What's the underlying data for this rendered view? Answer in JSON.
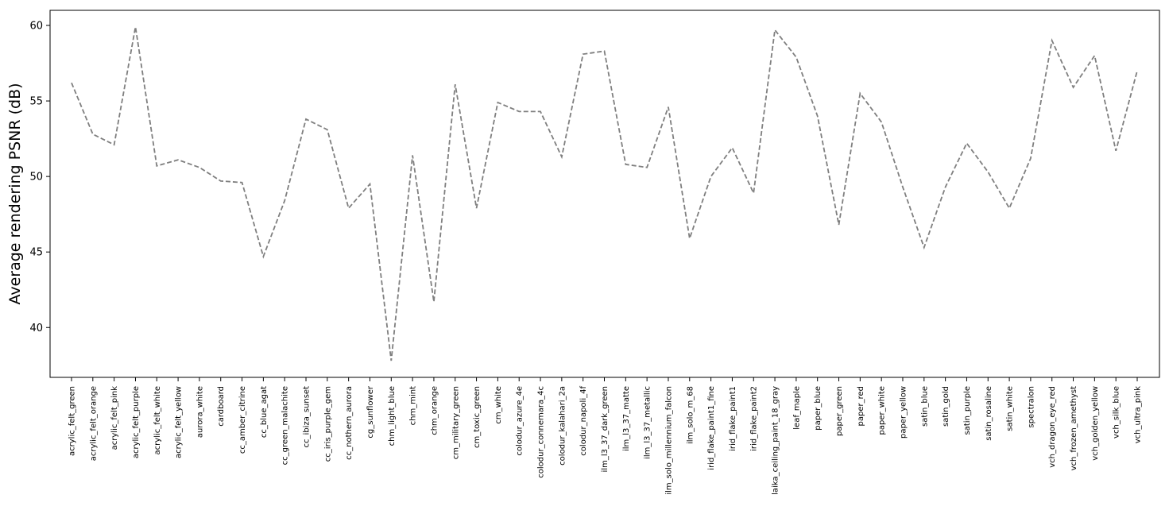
{
  "chart_data": {
    "type": "line",
    "title": "",
    "xlabel": "",
    "ylabel": "Average rendering PSNR (dB)",
    "ylim": [
      36.7,
      61.0
    ],
    "yticks": [
      40,
      45,
      50,
      55,
      60
    ],
    "grid": false,
    "legend": "none",
    "line_color": "#7f7f7f",
    "line_style": "dashed",
    "categories": [
      "acrylic_felt_green",
      "acrylic_felt_orange",
      "acrylic_felt_pink",
      "acrylic_felt_purple",
      "acrylic_felt_white",
      "acrylic_felt_yellow",
      "aurora_white",
      "cardboard",
      "cc_amber_citrine",
      "cc_blue_agat",
      "cc_green_malachite",
      "cc_ibiza_sunset",
      "cc_iris_purple_gem",
      "cc_nothern_aurora",
      "cg_sunflower",
      "chm_light_blue",
      "chm_mint",
      "chm_orange",
      "cm_military_green",
      "cm_toxic_green",
      "cm_white",
      "colodur_azure_4e",
      "colodur_connemara_4c",
      "colodur_kalahari_2a",
      "colodur_napoli_4f",
      "ilm_l3_37_dark_green",
      "ilm_l3_37_matte",
      "ilm_l3_37_metallic",
      "ilm_solo_millennium_falcon",
      "ilm_solo_m_68",
      "irid_flake_paint1_fine",
      "irid_flake_paint1",
      "irid_flake_paint2",
      "laika_ceiling_paint_18_gray",
      "leaf_maple",
      "paper_blue",
      "paper_green",
      "paper_red",
      "paper_white",
      "paper_yellow",
      "satin_blue",
      "satin_gold",
      "satin_purple",
      "satin_rosaline",
      "satin_white",
      "spectralon",
      "vch_dragon_eye_red",
      "vch_frozen_amethyst",
      "vch_golden_yellow",
      "vch_silk_blue",
      "vch_ultra_pink"
    ],
    "values": [
      56.2,
      52.8,
      52.1,
      59.9,
      50.7,
      51.1,
      50.6,
      49.7,
      49.6,
      44.7,
      48.4,
      53.8,
      53.1,
      47.9,
      49.5,
      37.8,
      51.4,
      41.7,
      56.1,
      47.9,
      54.9,
      54.3,
      54.3,
      51.3,
      58.1,
      58.3,
      50.8,
      50.6,
      54.6,
      45.9,
      50.0,
      51.9,
      48.9,
      59.7,
      57.9,
      54.0,
      46.8,
      55.5,
      53.6,
      49.3,
      45.3,
      49.3,
      52.2,
      50.3,
      47.9,
      51.2,
      59.0,
      55.9,
      58.0,
      51.7,
      57.0
    ]
  }
}
